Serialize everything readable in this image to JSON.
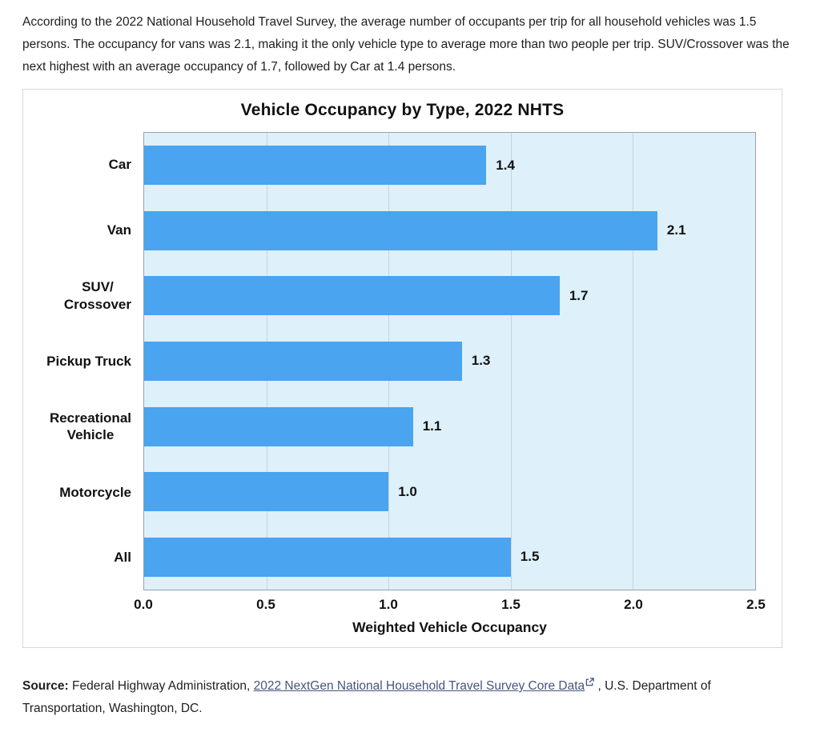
{
  "intro": {
    "text": "According to the 2022 National Household Travel Survey, the average number of occupants per trip for all household vehicles was 1.5 persons. The occupancy for vans was 2.1, making it the only vehicle type to average more than two people per trip. SUV/Crossover was the next highest with an average occupancy of 1.7, followed by Car at 1.4 persons."
  },
  "chart_data": {
    "type": "bar",
    "orientation": "horizontal",
    "title": "Vehicle Occupancy by Type, 2022 NHTS",
    "categories": [
      "Car",
      "Van",
      "SUV/\nCrossover",
      "Pickup Truck",
      "Recreational\nVehicle",
      "Motorcycle",
      "All"
    ],
    "values": [
      1.4,
      2.1,
      1.7,
      1.3,
      1.1,
      1.0,
      1.5
    ],
    "value_labels": [
      "1.4",
      "2.1",
      "1.7",
      "1.3",
      "1.1",
      "1.0",
      "1.5"
    ],
    "xlabel": "Weighted Vehicle Occupancy",
    "xticks": [
      0.0,
      0.5,
      1.0,
      1.5,
      2.0,
      2.5
    ],
    "xtick_labels": [
      "0.0",
      "0.5",
      "1.0",
      "1.5",
      "2.0",
      "2.5"
    ],
    "xlim": [
      0,
      2.5
    ],
    "grid": true,
    "legend": "none",
    "colors": {
      "bar": "#4aa4ef",
      "plot_bg": "#def0fa",
      "gridline": "#c9d3da",
      "axis": "#98a2a9",
      "link": "#44557d"
    }
  },
  "source": {
    "prefix": "Source:",
    "before_link": " Federal Highway Administration, ",
    "link_text": "2022 NextGen National Household Travel Survey Core Data",
    "icon": "external-link-icon",
    "after_link": " , U.S. Department of Transportation, Washington, DC."
  }
}
